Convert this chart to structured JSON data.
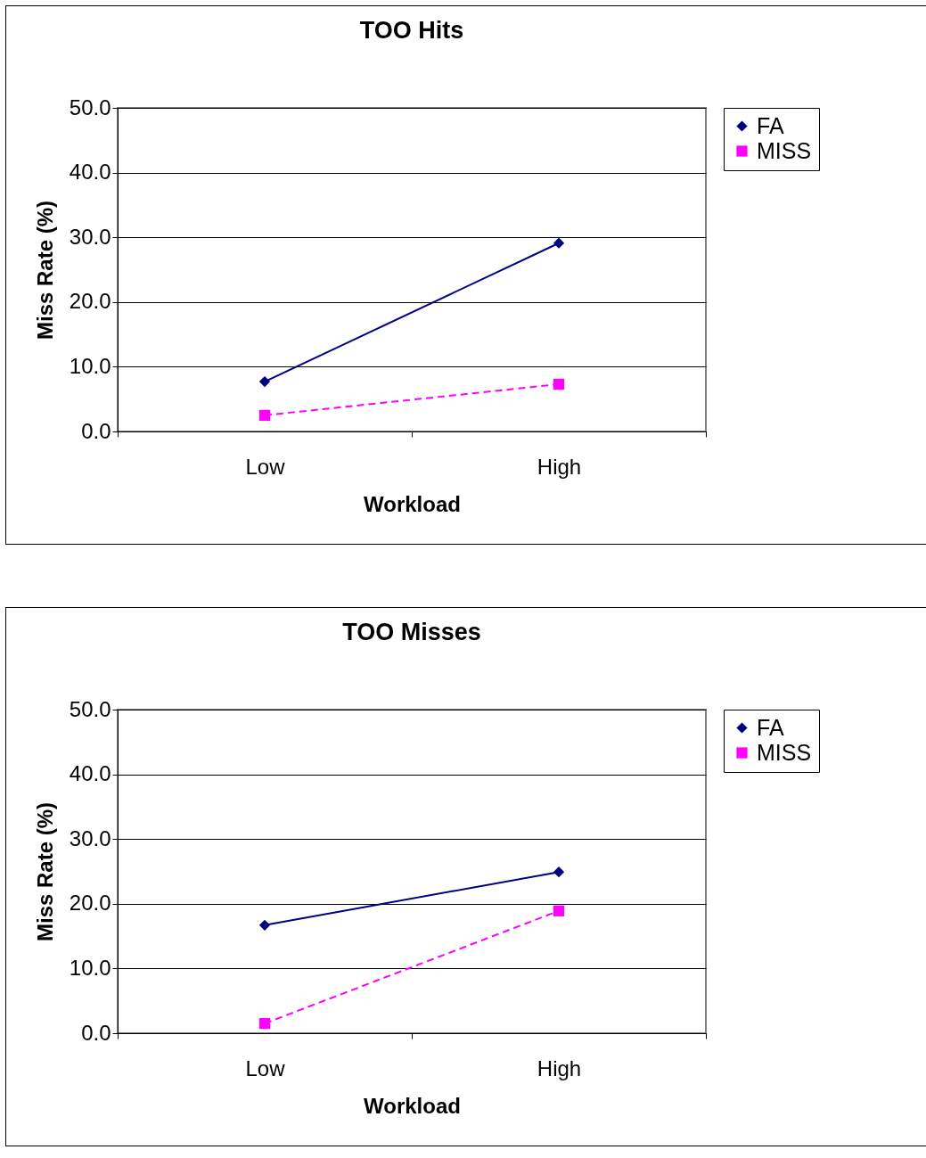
{
  "chart_data": [
    {
      "type": "line",
      "title": "TOO Hits",
      "xlabel": "Workload",
      "ylabel": "Miss Rate (%)",
      "categories": [
        "Low",
        "High"
      ],
      "ylim": [
        0,
        50
      ],
      "yticks": [
        {
          "value": 0,
          "label": "0.0"
        },
        {
          "value": 10,
          "label": "10.0"
        },
        {
          "value": 20,
          "label": "20.0"
        },
        {
          "value": 30,
          "label": "30.0"
        },
        {
          "value": 40,
          "label": "40.0"
        },
        {
          "value": 50,
          "label": "50.0"
        }
      ],
      "grid": "y",
      "legend": "right",
      "series": [
        {
          "name": "FA",
          "color": "#000080",
          "values": [
            7.7,
            29.1
          ],
          "marker": "diamond",
          "line_style": "solid"
        },
        {
          "name": "MISS",
          "color": "#ff00ff",
          "values": [
            2.5,
            7.3
          ],
          "marker": "square",
          "line_style": "dashed"
        }
      ]
    },
    {
      "type": "line",
      "title": "TOO Misses",
      "xlabel": "Workload",
      "ylabel": "Miss Rate (%)",
      "categories": [
        "Low",
        "High"
      ],
      "ylim": [
        0,
        50
      ],
      "yticks": [
        {
          "value": 0,
          "label": "0.0"
        },
        {
          "value": 10,
          "label": "10.0"
        },
        {
          "value": 20,
          "label": "20.0"
        },
        {
          "value": 30,
          "label": "30.0"
        },
        {
          "value": 40,
          "label": "40.0"
        },
        {
          "value": 50,
          "label": "50.0"
        }
      ],
      "grid": "y",
      "legend": "right",
      "series": [
        {
          "name": "FA",
          "color": "#000080",
          "values": [
            16.7,
            24.9
          ],
          "marker": "diamond",
          "line_style": "solid"
        },
        {
          "name": "MISS",
          "color": "#ff00ff",
          "values": [
            1.5,
            18.9
          ],
          "marker": "square",
          "line_style": "dashed"
        }
      ]
    }
  ]
}
